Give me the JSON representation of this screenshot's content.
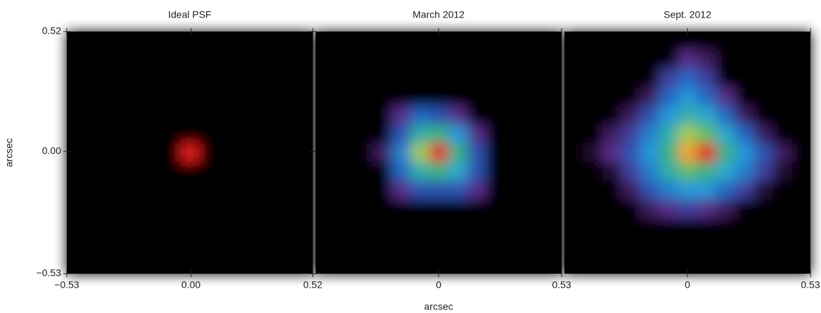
{
  "chart_data": [
    {
      "type": "heatmap",
      "title": "Ideal PSF",
      "ylabel": "arcsec",
      "xlim": [
        -0.53,
        0.52
      ],
      "ylim": [
        -0.53,
        0.52
      ],
      "xticks": [
        {
          "value": -0.53,
          "label": "−0.53"
        },
        {
          "value": 0,
          "label": "0.00"
        },
        0.52
      ],
      "yticks": [
        {
          "value": -0.53,
          "label": "−0.53"
        },
        {
          "value": 0,
          "label": "0.00"
        },
        0.52
      ],
      "colormap": [
        "#000000",
        "#5b2a86",
        "#1f5fc0",
        "#2aa8e0",
        "#3cb371",
        "#f5e13a",
        "#f07820",
        "#e01e1e"
      ],
      "z": [
        [
          0,
          0,
          0,
          0,
          0,
          0,
          0,
          0,
          0,
          0,
          0,
          0,
          0
        ],
        [
          0,
          0,
          0,
          0,
          0,
          0,
          0,
          0,
          0,
          0,
          0,
          0,
          0
        ],
        [
          0,
          0,
          0,
          0,
          0,
          0,
          0,
          0,
          0,
          0,
          0,
          0,
          0
        ],
        [
          0,
          0,
          0,
          0,
          0,
          0,
          0,
          0,
          0,
          0,
          0,
          0,
          0
        ],
        [
          0,
          0,
          0,
          0,
          0,
          0,
          0,
          0,
          0,
          0,
          0,
          0,
          0
        ],
        [
          0,
          0,
          0,
          0,
          0,
          0,
          0,
          0,
          0,
          0,
          0,
          0,
          0
        ],
        [
          0,
          0,
          0,
          0,
          0,
          0,
          1,
          0,
          0,
          0,
          0,
          0,
          0
        ],
        [
          0,
          0,
          0,
          0,
          0,
          0,
          0,
          0,
          0,
          0,
          0,
          0,
          0
        ],
        [
          0,
          0,
          0,
          0,
          0,
          0,
          0,
          0,
          0,
          0,
          0,
          0,
          0
        ],
        [
          0,
          0,
          0,
          0,
          0,
          0,
          0,
          0,
          0,
          0,
          0,
          0,
          0
        ],
        [
          0,
          0,
          0,
          0,
          0,
          0,
          0,
          0,
          0,
          0,
          0,
          0,
          0
        ],
        [
          0,
          0,
          0,
          0,
          0,
          0,
          0,
          0,
          0,
          0,
          0,
          0,
          0
        ],
        [
          0,
          0,
          0,
          0,
          0,
          0,
          0,
          0,
          0,
          0,
          0,
          0,
          0
        ]
      ]
    },
    {
      "type": "heatmap",
      "title": "March 2012",
      "xlabel": "arcsec",
      "xlim": [
        -0.53,
        0.53
      ],
      "ylim": [
        -0.53,
        0.52
      ],
      "xticks": [
        0,
        0.53
      ],
      "colormap": [
        "#000000",
        "#5b2a86",
        "#1f5fc0",
        "#2aa8e0",
        "#3cb371",
        "#f5e13a",
        "#f07820",
        "#e01e1e"
      ],
      "z": [
        [
          0,
          0,
          0,
          0,
          0,
          0,
          0,
          0,
          0,
          0,
          0,
          0,
          0
        ],
        [
          0,
          0,
          0,
          0,
          0,
          0,
          0,
          0,
          0,
          0,
          0,
          0,
          0
        ],
        [
          0,
          0,
          0,
          0,
          0,
          0,
          0,
          0,
          0,
          0,
          0,
          0,
          0
        ],
        [
          0,
          0,
          0,
          0,
          0,
          0,
          0,
          0,
          0,
          0,
          0,
          0,
          0
        ],
        [
          0,
          0,
          0,
          0,
          0.15,
          0.3,
          0.25,
          0.15,
          0,
          0,
          0,
          0,
          0
        ],
        [
          0,
          0,
          0,
          0,
          0.25,
          0.5,
          0.55,
          0.4,
          0.15,
          0,
          0,
          0,
          0
        ],
        [
          0,
          0,
          0,
          0.1,
          0.35,
          0.65,
          1,
          0.55,
          0.25,
          0,
          0,
          0,
          0
        ],
        [
          0,
          0,
          0,
          0,
          0.3,
          0.5,
          0.55,
          0.45,
          0.25,
          0,
          0,
          0,
          0
        ],
        [
          0,
          0,
          0,
          0,
          0.15,
          0.25,
          0.25,
          0.25,
          0.15,
          0,
          0,
          0,
          0
        ],
        [
          0,
          0,
          0,
          0,
          0,
          0,
          0,
          0,
          0,
          0,
          0,
          0,
          0
        ],
        [
          0,
          0,
          0,
          0,
          0,
          0,
          0,
          0,
          0,
          0,
          0,
          0,
          0
        ],
        [
          0,
          0,
          0,
          0,
          0,
          0,
          0,
          0,
          0,
          0,
          0,
          0,
          0
        ],
        [
          0,
          0,
          0,
          0,
          0,
          0,
          0,
          0,
          0,
          0,
          0,
          0,
          0
        ]
      ]
    },
    {
      "type": "heatmap",
      "title": "Sept. 2012",
      "xlim": [
        -0.53,
        0.53
      ],
      "ylim": [
        -0.53,
        0.52
      ],
      "xticks": [
        0,
        0.53
      ],
      "colormap": [
        "#000000",
        "#5b2a86",
        "#1f5fc0",
        "#2aa8e0",
        "#3cb371",
        "#f5e13a",
        "#f07820",
        "#e01e1e"
      ],
      "z": [
        [
          0,
          0,
          0,
          0,
          0,
          0,
          0,
          0,
          0,
          0,
          0,
          0,
          0
        ],
        [
          0,
          0,
          0,
          0,
          0,
          0,
          0.15,
          0.1,
          0,
          0,
          0,
          0,
          0
        ],
        [
          0,
          0,
          0,
          0,
          0,
          0.2,
          0.3,
          0.2,
          0,
          0,
          0,
          0,
          0
        ],
        [
          0,
          0,
          0,
          0,
          0.1,
          0.3,
          0.4,
          0.3,
          0.15,
          0,
          0,
          0,
          0
        ],
        [
          0,
          0,
          0,
          0.1,
          0.25,
          0.4,
          0.5,
          0.45,
          0.3,
          0.1,
          0,
          0,
          0
        ],
        [
          0,
          0,
          0.1,
          0.2,
          0.35,
          0.5,
          0.65,
          0.6,
          0.45,
          0.3,
          0.1,
          0,
          0
        ],
        [
          0,
          0.05,
          0.15,
          0.25,
          0.4,
          0.55,
          0.8,
          1,
          0.55,
          0.4,
          0.25,
          0.1,
          0
        ],
        [
          0,
          0,
          0.05,
          0.2,
          0.35,
          0.5,
          0.6,
          0.55,
          0.45,
          0.35,
          0.2,
          0.05,
          0
        ],
        [
          0,
          0,
          0,
          0.1,
          0.25,
          0.35,
          0.4,
          0.4,
          0.3,
          0.2,
          0.05,
          0,
          0
        ],
        [
          0,
          0,
          0,
          0,
          0.1,
          0.15,
          0.2,
          0.15,
          0.1,
          0,
          0,
          0,
          0
        ],
        [
          0,
          0,
          0,
          0,
          0,
          0,
          0,
          0,
          0,
          0,
          0,
          0,
          0
        ],
        [
          0,
          0,
          0,
          0,
          0,
          0,
          0,
          0,
          0,
          0,
          0,
          0,
          0
        ],
        [
          0,
          0,
          0,
          0,
          0,
          0,
          0,
          0,
          0,
          0,
          0,
          0,
          0
        ]
      ]
    }
  ]
}
